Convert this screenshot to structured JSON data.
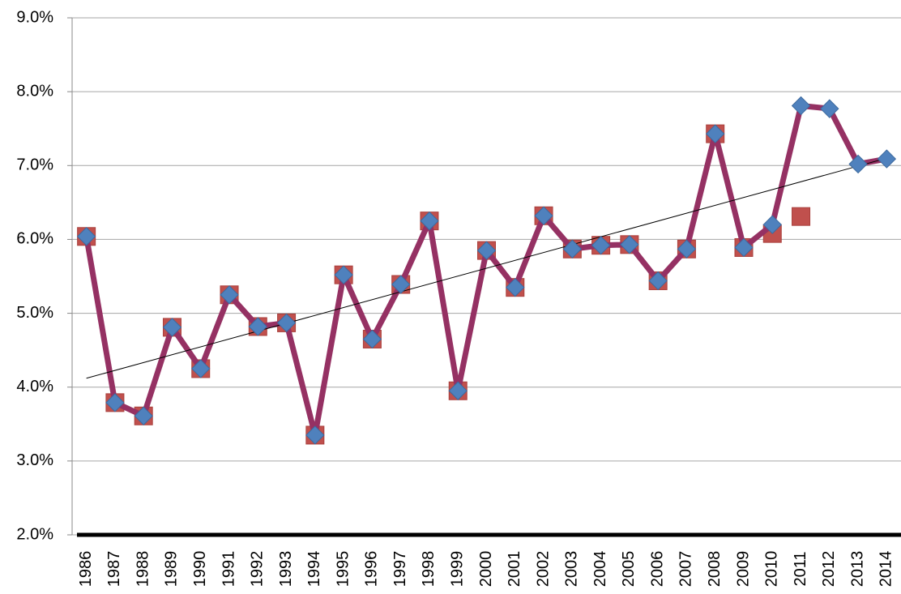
{
  "chart_data": {
    "type": "line",
    "categories": [
      "1986",
      "1987",
      "1988",
      "1989",
      "1990",
      "1991",
      "1992",
      "1993",
      "1994",
      "1995",
      "1996",
      "1997",
      "1998",
      "1999",
      "2000",
      "2001",
      "2002",
      "2003",
      "2004",
      "2005",
      "2006",
      "2007",
      "2008",
      "2009",
      "2010",
      "2011",
      "2012",
      "2013",
      "2014"
    ],
    "series": [
      {
        "marker": "square",
        "color": "#c0504d",
        "values": [
          6.04,
          3.79,
          3.61,
          4.81,
          4.25,
          5.25,
          4.82,
          4.87,
          3.35,
          5.52,
          4.65,
          5.39,
          6.25,
          3.95,
          5.85,
          5.35,
          6.32,
          5.87,
          5.92,
          5.93,
          5.44,
          5.87,
          7.43,
          5.89,
          6.08,
          6.31,
          null,
          null,
          null
        ]
      },
      {
        "marker": "diamond",
        "color": "#4f81bd",
        "line_color": "#953163",
        "values": [
          6.04,
          3.79,
          3.61,
          4.81,
          4.25,
          5.25,
          4.82,
          4.87,
          3.35,
          5.52,
          4.65,
          5.39,
          6.25,
          3.95,
          5.85,
          5.35,
          6.32,
          5.87,
          5.92,
          5.93,
          5.44,
          5.87,
          7.43,
          5.89,
          6.2,
          7.81,
          7.77,
          7.02,
          7.09
        ]
      }
    ],
    "trendline": {
      "color": "#000000",
      "values": [
        4.12,
        7.1
      ]
    },
    "ylim": [
      2,
      9
    ],
    "yticks": [
      {
        "value": 2,
        "label": "2.0%"
      },
      {
        "value": 3,
        "label": "3.0%"
      },
      {
        "value": 4,
        "label": "4.0%"
      },
      {
        "value": 5,
        "label": "5.0%"
      },
      {
        "value": 6,
        "label": "6.0%"
      },
      {
        "value": 7,
        "label": "7.0%"
      },
      {
        "value": 8,
        "label": "8.0%"
      },
      {
        "value": 9,
        "label": "9.0%"
      }
    ],
    "grid": true
  }
}
